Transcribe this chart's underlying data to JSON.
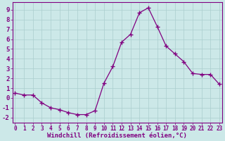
{
  "x": [
    0,
    1,
    2,
    3,
    4,
    5,
    6,
    7,
    8,
    9,
    10,
    11,
    12,
    13,
    14,
    15,
    16,
    17,
    18,
    19,
    20,
    21,
    22,
    23
  ],
  "y": [
    0.5,
    0.3,
    0.3,
    -0.5,
    -1.0,
    -1.2,
    -1.5,
    -1.7,
    -1.7,
    -1.3,
    1.5,
    3.2,
    5.7,
    6.5,
    8.7,
    9.2,
    7.3,
    5.3,
    4.5,
    3.7,
    2.5,
    2.4,
    2.4,
    1.4
  ],
  "line_color": "#800080",
  "marker": "+",
  "marker_size": 4,
  "bg_color": "#cce8e8",
  "grid_color": "#aacece",
  "ylabel_ticks": [
    -2,
    -1,
    0,
    1,
    2,
    3,
    4,
    5,
    6,
    7,
    8,
    9
  ],
  "xlabel_ticks": [
    0,
    1,
    2,
    3,
    4,
    5,
    6,
    7,
    8,
    9,
    10,
    11,
    12,
    13,
    14,
    15,
    16,
    17,
    18,
    19,
    20,
    21,
    22,
    23
  ],
  "xlabel": "Windchill (Refroidissement éolien,°C)",
  "ylim": [
    -2.5,
    9.8
  ],
  "xlim": [
    -0.3,
    23.3
  ],
  "axis_color": "#800080",
  "tick_color": "#800080",
  "label_fontsize": 5.5,
  "ytick_fontsize": 6.5,
  "xlabel_fontsize": 6.5
}
